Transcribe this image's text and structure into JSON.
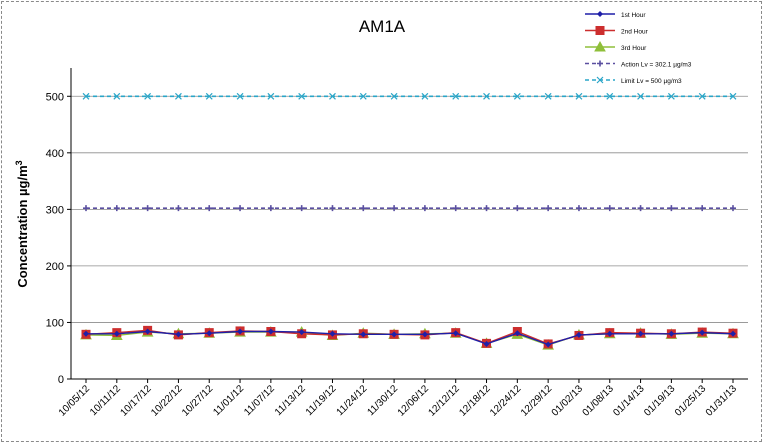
{
  "chart_data": {
    "type": "line",
    "title": "AM1A",
    "ylabel": "Concentration  µg/m³",
    "ylabel_base": "Concentration  µg/m",
    "ylabel_sup": "3",
    "xlabel": "",
    "ylim": [
      0,
      550
    ],
    "yticks": [
      0,
      100,
      200,
      300,
      400,
      500
    ],
    "grid": true,
    "legend_position": "top-right",
    "categories": [
      "10/05/12",
      "10/11/12",
      "10/17/12",
      "10/22/12",
      "10/27/12",
      "11/01/12",
      "11/07/12",
      "11/13/12",
      "11/19/12",
      "11/24/12",
      "11/30/12",
      "12/06/12",
      "12/12/12",
      "12/18/12",
      "12/24/12",
      "12/29/12",
      "01/02/13",
      "01/08/13",
      "01/14/13",
      "01/19/13",
      "01/25/13",
      "01/31/13"
    ],
    "series": [
      {
        "name": "1st Hour",
        "color": "#1f1fa8",
        "marker": "diamond",
        "values": [
          80,
          80,
          84,
          79,
          81,
          84,
          84,
          83,
          80,
          79,
          79,
          79,
          81,
          62,
          81,
          61,
          78,
          80,
          80,
          80,
          82,
          80
        ]
      },
      {
        "name": "2nd Hour",
        "color": "#cc2e2e",
        "marker": "square",
        "values": [
          79,
          82,
          86,
          78,
          82,
          85,
          84,
          80,
          78,
          80,
          79,
          78,
          82,
          63,
          84,
          62,
          77,
          82,
          81,
          80,
          83,
          81
        ]
      },
      {
        "name": "3rd Hour",
        "color": "#8fbf3a",
        "marker": "triangle",
        "values": [
          78,
          77,
          83,
          80,
          81,
          83,
          83,
          83,
          77,
          81,
          79,
          80,
          81,
          63,
          79,
          60,
          78,
          80,
          81,
          79,
          81,
          80
        ]
      },
      {
        "name": "Action Lv = 302.1 µg/m3",
        "color": "#5a4fa0",
        "style": "dashed",
        "marker": "plus",
        "values": [
          302.1,
          302.1,
          302.1,
          302.1,
          302.1,
          302.1,
          302.1,
          302.1,
          302.1,
          302.1,
          302.1,
          302.1,
          302.1,
          302.1,
          302.1,
          302.1,
          302.1,
          302.1,
          302.1,
          302.1,
          302.1,
          302.1
        ]
      },
      {
        "name": "Limit Lv = 500 µg/m3",
        "color": "#2aa6c8",
        "style": "dashed",
        "marker": "star",
        "values": [
          500,
          500,
          500,
          500,
          500,
          500,
          500,
          500,
          500,
          500,
          500,
          500,
          500,
          500,
          500,
          500,
          500,
          500,
          500,
          500,
          500,
          500
        ]
      }
    ]
  }
}
